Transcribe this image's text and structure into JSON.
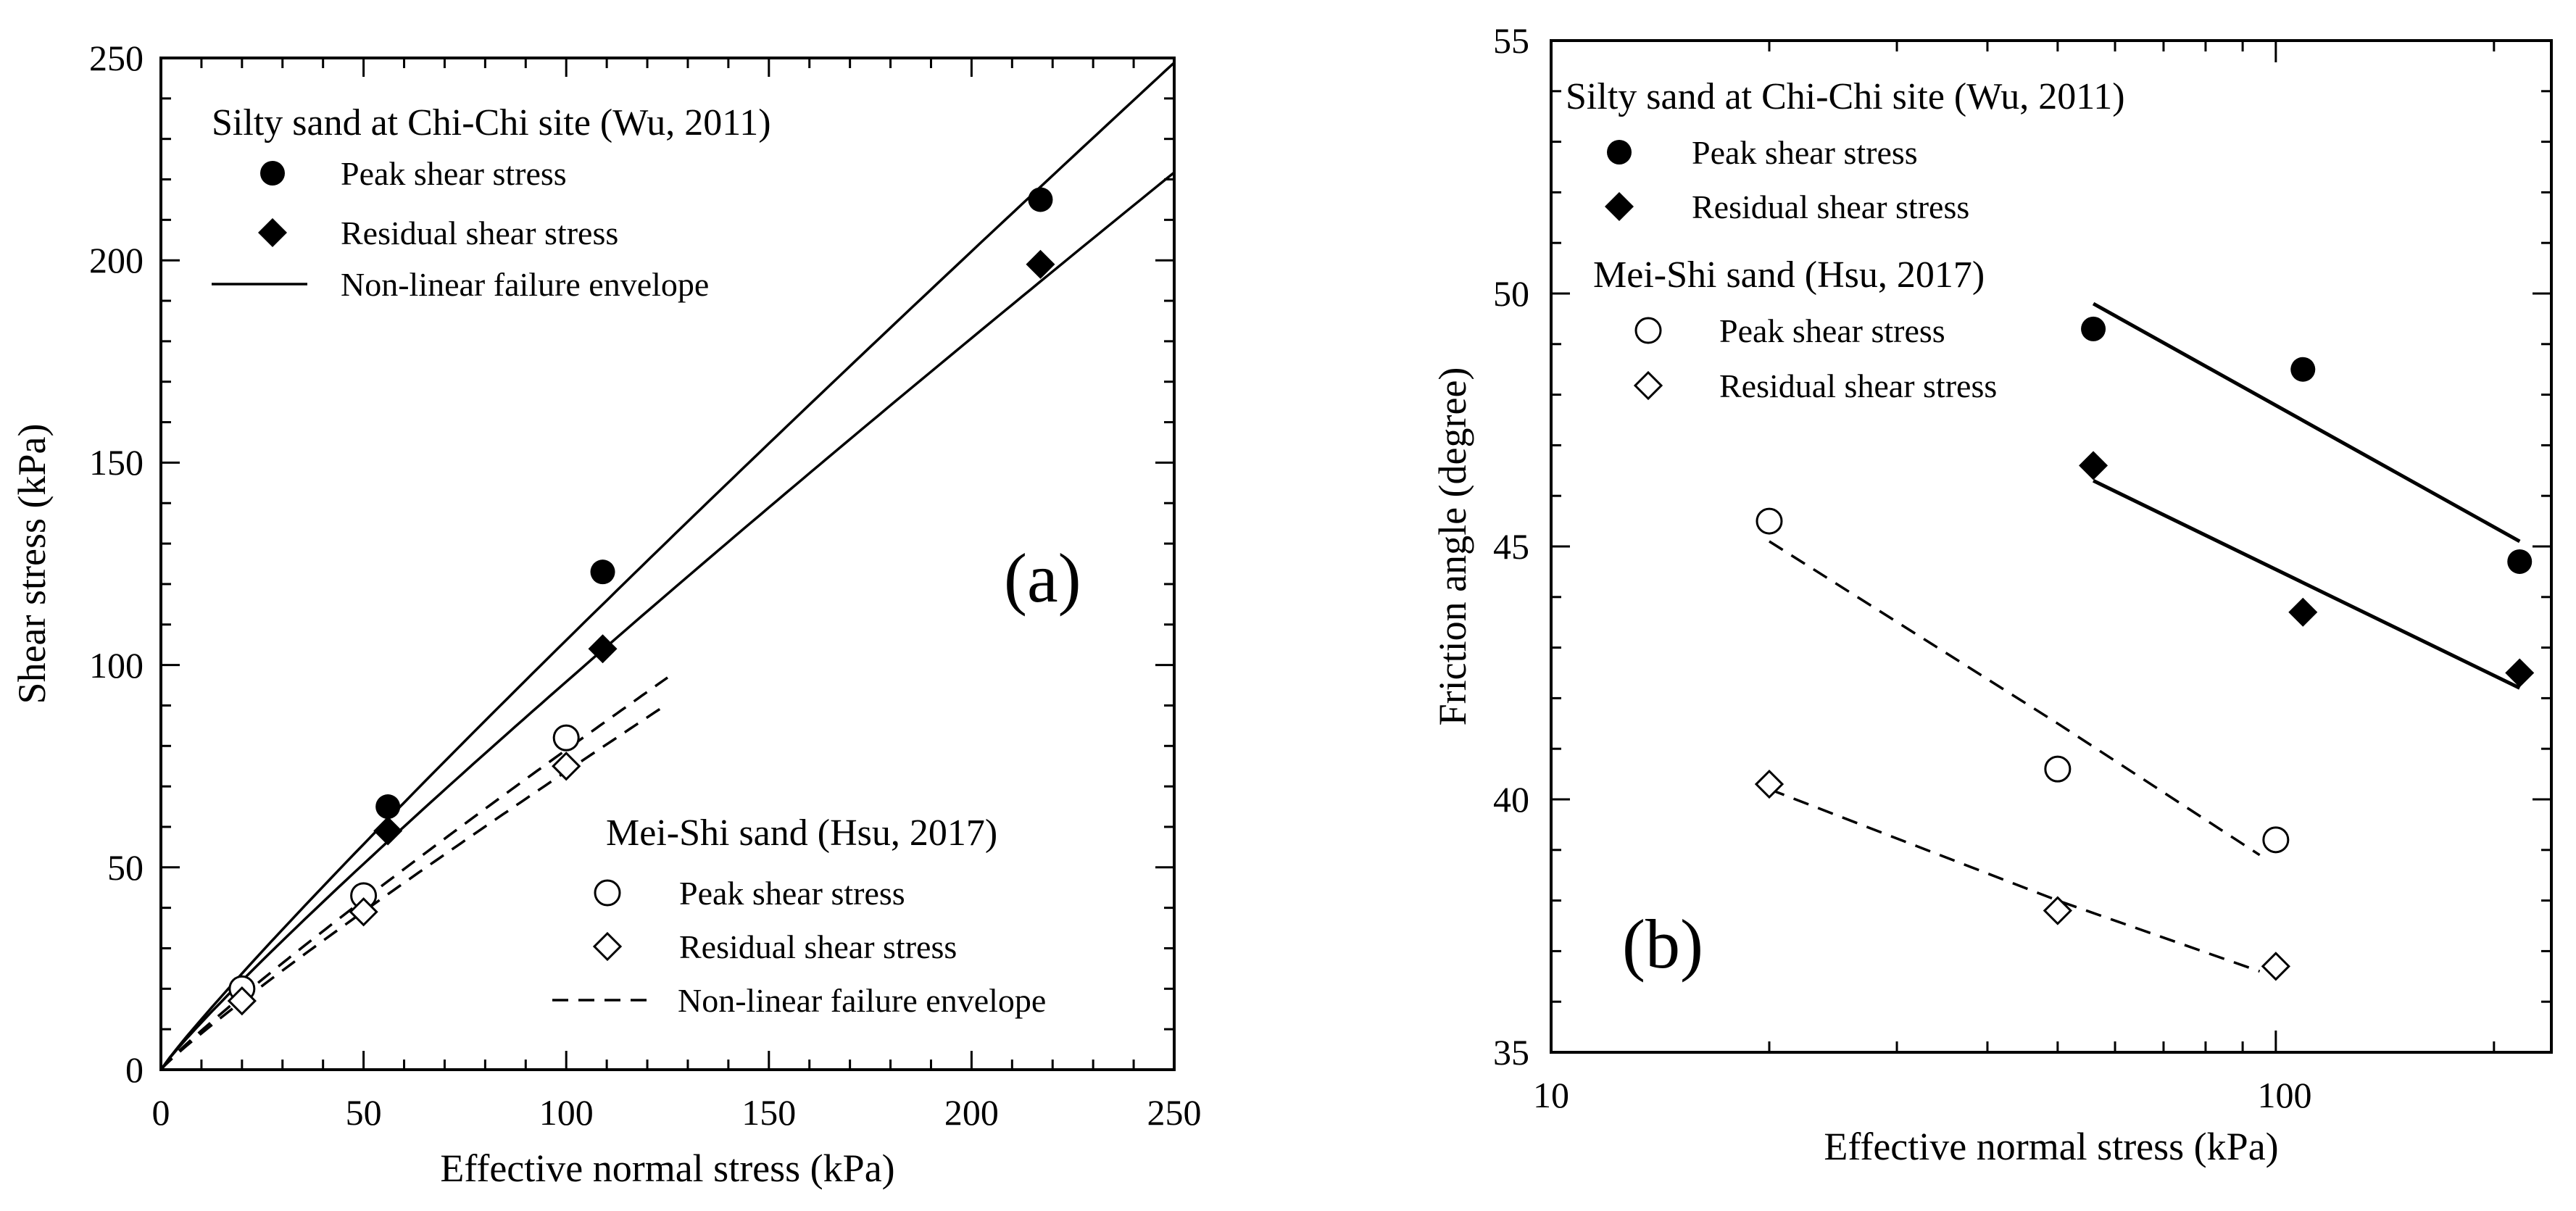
{
  "chart_data": [
    {
      "type": "scatter",
      "panel_label": "(a)",
      "xlabel": "Effective normal stress (kPa)",
      "ylabel": "Shear stress (kPa)",
      "xlim": [
        0,
        250
      ],
      "ylim": [
        0,
        250
      ],
      "xscale": "linear",
      "x_ticks": [
        0,
        50,
        100,
        150,
        200,
        250
      ],
      "y_ticks": [
        0,
        50,
        100,
        150,
        200,
        250
      ],
      "x_tick_labels": [
        "0",
        "50",
        "100",
        "150",
        "200",
        "250"
      ],
      "y_tick_labels": [
        "0",
        "50",
        "100",
        "150",
        "200",
        "250"
      ],
      "grid": false,
      "legends": [
        {
          "title": "Silty sand at Chi-Chi site (Wu, 2011)",
          "placement": "top-left",
          "entries": [
            {
              "label": "Peak shear stress",
              "marker": "filled-circle"
            },
            {
              "label": "Residual shear stress",
              "marker": "filled-diamond"
            },
            {
              "label": "Non-linear failure envelope",
              "marker": "solid-line"
            }
          ]
        },
        {
          "title": "Mei-Shi sand (Hsu, 2017)",
          "placement": "bottom-right",
          "entries": [
            {
              "label": "Peak shear stress",
              "marker": "open-circle"
            },
            {
              "label": "Residual shear stress",
              "marker": "open-diamond"
            },
            {
              "label": "Non-linear failure envelope",
              "marker": "dashed-line"
            }
          ]
        }
      ],
      "series": [
        {
          "name": "Chi-Chi peak shear stress",
          "marker": "filled-circle",
          "x": [
            56,
            109,
            217
          ],
          "y": [
            65,
            123,
            215
          ]
        },
        {
          "name": "Chi-Chi residual shear stress",
          "marker": "filled-diamond",
          "x": [
            56,
            109,
            217
          ],
          "y": [
            59,
            104,
            199
          ]
        },
        {
          "name": "Mei-Shi peak shear stress",
          "marker": "open-circle",
          "x": [
            20,
            50,
            100
          ],
          "y": [
            20,
            43,
            82
          ]
        },
        {
          "name": "Mei-Shi residual shear stress",
          "marker": "open-diamond",
          "x": [
            20,
            50,
            100
          ],
          "y": [
            17,
            39,
            75
          ]
        }
      ],
      "envelopes": [
        {
          "name": "Chi-Chi peak envelope",
          "style": "solid",
          "a": 1.465,
          "b": 0.93,
          "x_range": [
            0,
            250
          ]
        },
        {
          "name": "Chi-Chi residual envelope",
          "style": "solid",
          "a": 1.418,
          "b": 0.915,
          "x_range": [
            0,
            250
          ]
        },
        {
          "name": "Mei-Shi peak envelope",
          "style": "dashed",
          "a": 1.18,
          "b": 0.913,
          "x_range": [
            0,
            125
          ]
        },
        {
          "name": "Mei-Shi residual envelope",
          "style": "dashed",
          "a": 1.09,
          "b": 0.915,
          "x_range": [
            0,
            125
          ]
        }
      ]
    },
    {
      "type": "scatter",
      "panel_label": "(b)",
      "xlabel": "Effective normal stress (kPa)",
      "ylabel": "Friction angle (degree)",
      "xlim": [
        10,
        240
      ],
      "ylim": [
        35,
        55
      ],
      "xscale": "log",
      "x_ticks": [
        10,
        100
      ],
      "x_tick_labels": [
        "10",
        "100"
      ],
      "y_ticks": [
        35,
        40,
        45,
        50,
        55
      ],
      "y_tick_labels": [
        "35",
        "40",
        "45",
        "50",
        "55"
      ],
      "grid": false,
      "legends": [
        {
          "title": "Silty sand at Chi-Chi site (Wu, 2011)",
          "placement": "top-left",
          "entries": [
            {
              "label": "Peak shear stress",
              "marker": "filled-circle"
            },
            {
              "label": "Residual shear stress",
              "marker": "filled-diamond"
            }
          ]
        },
        {
          "title": "Mei-Shi sand (Hsu, 2017)",
          "placement": "upper-left",
          "entries": [
            {
              "label": "Peak shear stress",
              "marker": "open-circle"
            },
            {
              "label": "Residual shear stress",
              "marker": "open-diamond"
            }
          ]
        }
      ],
      "series": [
        {
          "name": "Chi-Chi peak friction angle",
          "marker": "filled-circle",
          "x": [
            56,
            109,
            217
          ],
          "y": [
            49.3,
            48.5,
            44.7
          ]
        },
        {
          "name": "Chi-Chi residual friction angle",
          "marker": "filled-diamond",
          "x": [
            56,
            109,
            217
          ],
          "y": [
            46.6,
            43.7,
            42.5
          ]
        },
        {
          "name": "Mei-Shi peak friction angle",
          "marker": "open-circle",
          "x": [
            20,
            50,
            100
          ],
          "y": [
            45.5,
            40.6,
            39.2
          ]
        },
        {
          "name": "Mei-Shi residual friction angle",
          "marker": "open-diamond",
          "x": [
            20,
            50,
            100
          ],
          "y": [
            40.3,
            37.8,
            36.7
          ]
        }
      ],
      "trend_lines": [
        {
          "name": "Chi-Chi peak trend",
          "style": "solid",
          "x": [
            56,
            217
          ],
          "y": [
            49.8,
            45.1
          ]
        },
        {
          "name": "Chi-Chi residual trend",
          "style": "solid",
          "x": [
            56,
            217
          ],
          "y": [
            46.3,
            42.2
          ]
        },
        {
          "name": "Mei-Shi peak trend",
          "style": "dashed",
          "x": [
            20,
            50,
            95
          ],
          "y": [
            45.1,
            41.5,
            38.9
          ]
        },
        {
          "name": "Mei-Shi residual trend",
          "style": "dashed",
          "x": [
            20,
            50,
            95
          ],
          "y": [
            40.2,
            38.0,
            36.6
          ]
        }
      ]
    }
  ]
}
